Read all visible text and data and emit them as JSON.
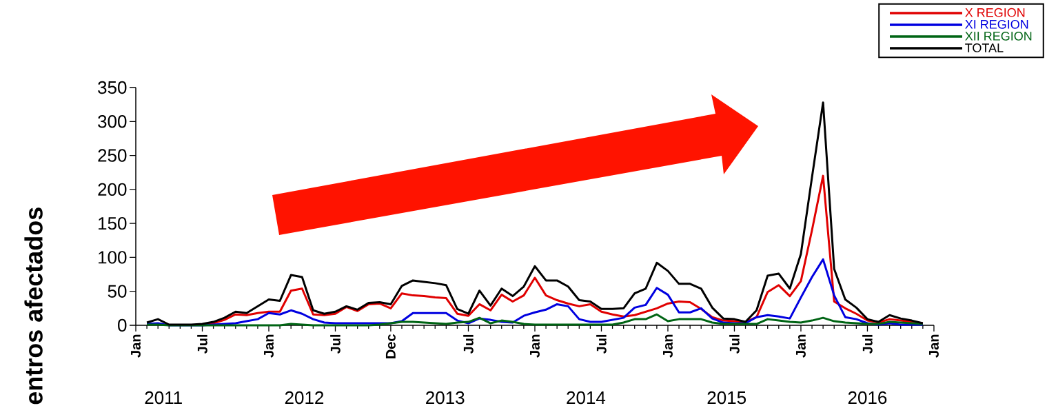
{
  "chart_data": {
    "type": "line",
    "ylabel": "entros afectados",
    "legend": "top right",
    "xlim": [
      "2011-01",
      "2017-01"
    ],
    "ylim": [
      0,
      350
    ],
    "yticks": [
      0,
      50,
      100,
      150,
      200,
      250,
      300,
      350
    ],
    "xticks": [
      {
        "value": "2011-01",
        "label": "Jan"
      },
      {
        "value": "2011-02",
        "label": null
      },
      {
        "value": "2011-03",
        "label": null
      },
      {
        "value": "2011-04",
        "label": null
      },
      {
        "value": "2011-05",
        "label": null
      },
      {
        "value": "2011-06",
        "label": null
      },
      {
        "value": "2011-07",
        "label": "Jul"
      },
      {
        "value": "2011-08",
        "label": null
      },
      {
        "value": "2011-09",
        "label": null
      },
      {
        "value": "2011-10",
        "label": null
      },
      {
        "value": "2011-11",
        "label": null
      },
      {
        "value": "2011-12",
        "label": null
      },
      {
        "value": "2012-01",
        "label": "Jan"
      },
      {
        "value": "2012-02",
        "label": null
      },
      {
        "value": "2012-03",
        "label": null
      },
      {
        "value": "2012-04",
        "label": null
      },
      {
        "value": "2012-05",
        "label": null
      },
      {
        "value": "2012-06",
        "label": null
      },
      {
        "value": "2012-07",
        "label": "Jul"
      },
      {
        "value": "2012-08",
        "label": null
      },
      {
        "value": "2012-09",
        "label": null
      },
      {
        "value": "2012-10",
        "label": null
      },
      {
        "value": "2012-11",
        "label": null
      },
      {
        "value": "2012-12",
        "label": "Dec"
      },
      {
        "value": "2013-01",
        "label": null
      },
      {
        "value": "2013-02",
        "label": null
      },
      {
        "value": "2013-03",
        "label": null
      },
      {
        "value": "2013-04",
        "label": null
      },
      {
        "value": "2013-05",
        "label": null
      },
      {
        "value": "2013-06",
        "label": null
      },
      {
        "value": "2013-07",
        "label": "Jul"
      },
      {
        "value": "2013-08",
        "label": null
      },
      {
        "value": "2013-09",
        "label": null
      },
      {
        "value": "2013-10",
        "label": null
      },
      {
        "value": "2013-11",
        "label": null
      },
      {
        "value": "2013-12",
        "label": null
      },
      {
        "value": "2014-01",
        "label": "Jan"
      },
      {
        "value": "2014-02",
        "label": null
      },
      {
        "value": "2014-03",
        "label": null
      },
      {
        "value": "2014-04",
        "label": null
      },
      {
        "value": "2014-05",
        "label": null
      },
      {
        "value": "2014-06",
        "label": null
      },
      {
        "value": "2014-07",
        "label": "Jul"
      },
      {
        "value": "2014-08",
        "label": null
      },
      {
        "value": "2014-09",
        "label": null
      },
      {
        "value": "2014-10",
        "label": null
      },
      {
        "value": "2014-11",
        "label": null
      },
      {
        "value": "2014-12",
        "label": null
      },
      {
        "value": "2015-01",
        "label": "Jan"
      },
      {
        "value": "2015-02",
        "label": null
      },
      {
        "value": "2015-03",
        "label": null
      },
      {
        "value": "2015-04",
        "label": null
      },
      {
        "value": "2015-05",
        "label": null
      },
      {
        "value": "2015-06",
        "label": null
      },
      {
        "value": "2015-07",
        "label": "Jul"
      },
      {
        "value": "2015-08",
        "label": null
      },
      {
        "value": "2015-09",
        "label": null
      },
      {
        "value": "2015-10",
        "label": null
      },
      {
        "value": "2015-11",
        "label": null
      },
      {
        "value": "2015-12",
        "label": null
      },
      {
        "value": "2016-01",
        "label": "Jan"
      },
      {
        "value": "2016-02",
        "label": null
      },
      {
        "value": "2016-03",
        "label": null
      },
      {
        "value": "2016-04",
        "label": null
      },
      {
        "value": "2016-05",
        "label": null
      },
      {
        "value": "2016-06",
        "label": null
      },
      {
        "value": "2016-07",
        "label": "Jul"
      },
      {
        "value": "2016-08",
        "label": null
      },
      {
        "value": "2016-09",
        "label": null
      },
      {
        "value": "2016-10",
        "label": null
      },
      {
        "value": "2016-11",
        "label": null
      },
      {
        "value": "2016-12",
        "label": null
      },
      {
        "value": "2017-01",
        "label": "Jan"
      }
    ],
    "annotations": [
      "2011",
      "2012",
      "2013",
      "2014",
      "2015",
      "2016"
    ],
    "x": [
      "2011-02",
      "2011-03",
      "2011-04",
      "2011-05",
      "2011-06",
      "2011-07",
      "2011-08",
      "2011-09",
      "2011-10",
      "2011-11",
      "2011-12",
      "2012-01",
      "2012-02",
      "2012-03",
      "2012-04",
      "2012-05",
      "2012-06",
      "2012-07",
      "2012-08",
      "2012-09",
      "2012-10",
      "2012-11",
      "2012-12",
      "2013-01",
      "2013-02",
      "2013-03",
      "2013-04",
      "2013-05",
      "2013-06",
      "2013-07",
      "2013-08",
      "2013-09",
      "2013-10",
      "2013-11",
      "2013-12",
      "2014-01",
      "2014-02",
      "2014-03",
      "2014-04",
      "2014-05",
      "2014-06",
      "2014-07",
      "2014-08",
      "2014-09",
      "2014-10",
      "2014-11",
      "2014-12",
      "2015-01",
      "2015-02",
      "2015-03",
      "2015-04",
      "2015-05",
      "2015-06",
      "2015-07",
      "2015-08",
      "2015-09",
      "2015-10",
      "2015-11",
      "2015-12",
      "2016-01",
      "2016-02",
      "2016-03",
      "2016-04",
      "2016-05",
      "2016-06",
      "2016-07",
      "2016-08",
      "2016-09",
      "2016-10",
      "2016-11",
      "2016-12"
    ],
    "series": [
      {
        "name": "X REGION",
        "color": "#e00000",
        "values": [
          null,
          null,
          null,
          null,
          null,
          0,
          3,
          8,
          16,
          15,
          18,
          20,
          20,
          51,
          54,
          16,
          15,
          17,
          27,
          21,
          31,
          32,
          25,
          47,
          44,
          43,
          41,
          40,
          17,
          14,
          31,
          22,
          45,
          35,
          44,
          70,
          44,
          37,
          32,
          28,
          31,
          20,
          16,
          13,
          15,
          20,
          25,
          32,
          35,
          34,
          24,
          12,
          7,
          6,
          5,
          12,
          49,
          59,
          43,
          65,
          140,
          220,
          35,
          25,
          17,
          7,
          4,
          9,
          7,
          5,
          3
        ]
      },
      {
        "name": "XI REGION",
        "color": "#0000e0",
        "values": [
          2,
          3,
          0,
          0,
          0,
          0,
          1,
          2,
          3,
          6,
          9,
          18,
          16,
          22,
          17,
          9,
          4,
          3,
          3,
          3,
          3,
          3,
          3,
          6,
          18,
          18,
          18,
          18,
          7,
          3,
          10,
          8,
          5,
          4,
          14,
          19,
          23,
          31,
          28,
          9,
          5,
          5,
          8,
          11,
          26,
          30,
          55,
          45,
          19,
          19,
          25,
          10,
          4,
          3,
          3,
          12,
          15,
          13,
          10,
          41,
          71,
          97,
          44,
          12,
          9,
          3,
          1,
          3,
          1,
          1,
          1
        ]
      },
      {
        "name": "XII REGION",
        "color": "#006414",
        "values": [
          1,
          1,
          0,
          0,
          0,
          0,
          0,
          0,
          0,
          0,
          0,
          0,
          0,
          2,
          1,
          0,
          0,
          0,
          0,
          0,
          0,
          1,
          3,
          5,
          5,
          4,
          3,
          2,
          4,
          5,
          11,
          3,
          7,
          5,
          2,
          1,
          1,
          1,
          1,
          1,
          1,
          1,
          1,
          4,
          9,
          9,
          16,
          6,
          9,
          9,
          9,
          4,
          2,
          2,
          2,
          2,
          9,
          7,
          5,
          4,
          7,
          11,
          6,
          4,
          3,
          2,
          2,
          5,
          4,
          3,
          2
        ]
      },
      {
        "name": "TOTAL",
        "color": "#000000",
        "values": [
          4,
          9,
          1,
          1,
          1,
          2,
          5,
          11,
          20,
          18,
          28,
          38,
          36,
          74,
          71,
          22,
          17,
          20,
          28,
          23,
          33,
          34,
          31,
          58,
          66,
          64,
          62,
          59,
          24,
          17,
          51,
          29,
          54,
          43,
          57,
          87,
          66,
          66,
          57,
          37,
          35,
          24,
          24,
          25,
          47,
          54,
          92,
          80,
          61,
          61,
          54,
          26,
          10,
          9,
          5,
          22,
          73,
          76,
          54,
          105,
          218,
          328,
          83,
          38,
          26,
          9,
          5,
          15,
          10,
          7,
          3
        ]
      }
    ]
  }
}
